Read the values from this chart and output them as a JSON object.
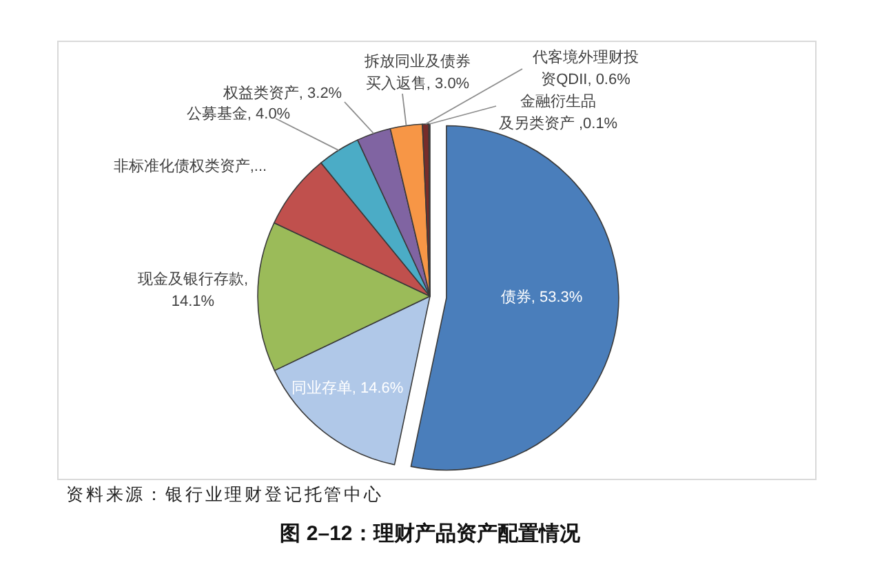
{
  "chart_data": {
    "type": "pie",
    "title": "图 2–12：理财产品资产配置情况",
    "annotations": [
      "资料来源：银行业理财登记托管中心"
    ],
    "categories": [
      "债券",
      "同业存单",
      "现金及银行存款",
      "非标准化债权类资产",
      "公募基金",
      "权益类资产",
      "拆放同业及债券买入返售",
      "代客境外理财投资QDII",
      "金融衍生品及另类资产"
    ],
    "values": [
      53.3,
      14.6,
      14.1,
      7.1,
      4.0,
      3.2,
      3.0,
      0.6,
      0.1
    ],
    "value_labels": [
      ", 53.3%",
      ", 14.6%",
      ", 14.1%",
      ",...",
      ", 4.0%",
      ", 3.2%",
      ", 3.0%",
      ", 0.6%",
      " ,0.1%"
    ],
    "colors": [
      "#4a7ebb",
      "#b0c8e8",
      "#9bbb59",
      "#c0504d",
      "#4bacc6",
      "#8064a2",
      "#f79646",
      "#772c2a",
      "#2c4d75"
    ]
  }
}
